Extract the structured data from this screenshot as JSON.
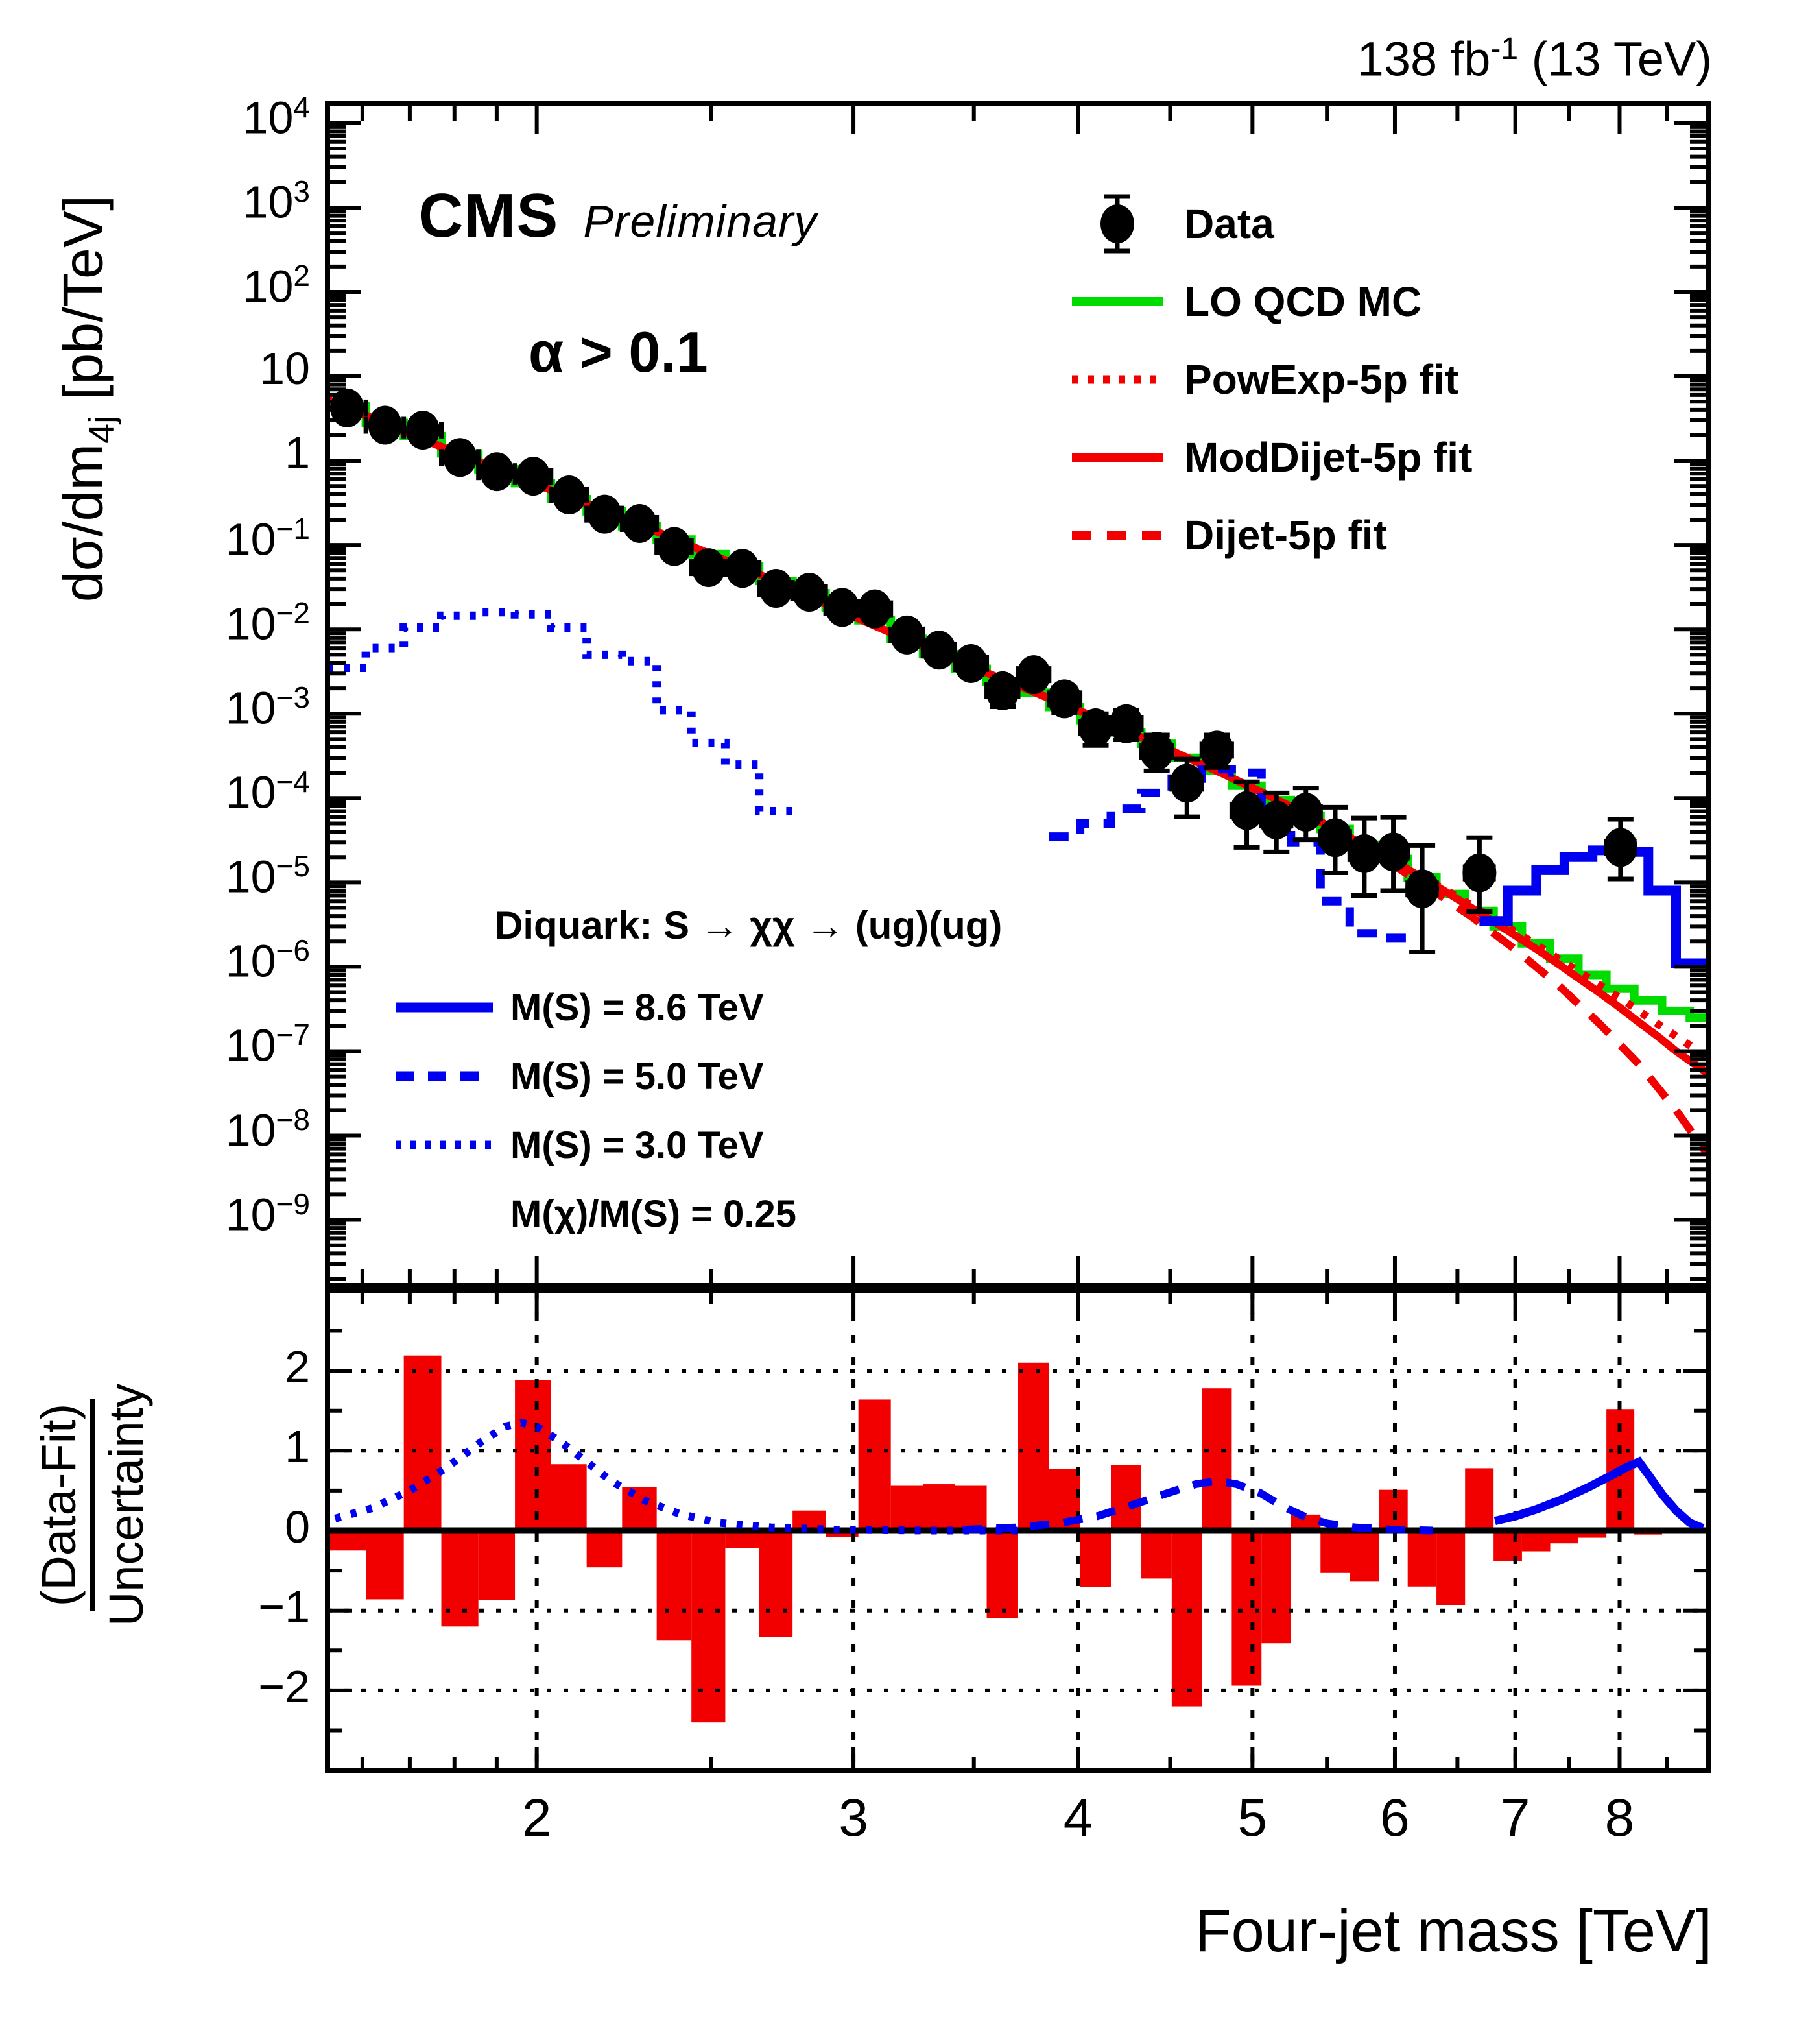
{
  "header": {
    "lumi_pre": "138 fb",
    "lumi_sup": "-1",
    "lumi_post": " (13 TeV)"
  },
  "branding": {
    "experiment": "CMS",
    "label": "Preliminary"
  },
  "selection": {
    "alpha_cut": "α > 0.1"
  },
  "axis_titles": {
    "y_pre": "dσ/dm",
    "y_sub": "4j",
    "y_post": " [pb/TeV]",
    "x": "Four-jet mass [TeV]",
    "pull_numerator": "(Data-Fit)",
    "pull_denominator": "Uncertainty"
  },
  "legend": {
    "items": [
      {
        "label": "Data",
        "style": "data-marker"
      },
      {
        "label": "LO QCD MC",
        "style": "green-solid"
      },
      {
        "label": "PowExp-5p fit",
        "style": "red-dotted"
      },
      {
        "label": "ModDijet-5p fit",
        "style": "red-solid"
      },
      {
        "label": "Dijet-5p fit",
        "style": "red-dashed"
      }
    ]
  },
  "signal_legend": {
    "title": "Diquark: S → χχ → (ug)(ug)",
    "items": [
      {
        "label": "M(S) = 8.6 TeV",
        "style": "blue-solid"
      },
      {
        "label": "M(S) = 5.0 TeV",
        "style": "blue-dashed"
      },
      {
        "label": "M(S) = 3.0 TeV",
        "style": "blue-dotted"
      }
    ],
    "note": "M(χ)/M(S) = 0.25"
  },
  "colors": {
    "data": "#000000",
    "mc_green": "#00dc00",
    "fit_red": "#f20000",
    "signal_blue": "#0000f0",
    "frame": "#000000"
  },
  "chart_data": {
    "type": "line",
    "title": "CMS four-jet mass spectrum with fits and diquark signal shapes",
    "xlabel": "Four-jet mass [TeV]",
    "ylabel": "dσ/dm4j [pb/TeV]",
    "main": {
      "xlim": [
        1.53,
        8.96
      ],
      "ylim_log10": [
        -9.78,
        4.23
      ],
      "x_scale": "log",
      "y_scale": "log",
      "grid": false,
      "xticks": [
        2,
        3,
        4,
        5,
        6,
        7,
        8
      ],
      "xtick_minor": [
        1.6,
        1.7,
        1.8,
        1.9,
        2.5,
        3.5,
        4.5,
        5.5,
        6.5,
        7.5,
        8.5
      ],
      "ytick_exponents": [
        4,
        3,
        2,
        1,
        0,
        -1,
        -2,
        -3,
        -4,
        -5,
        -6,
        -7,
        -8,
        -9
      ],
      "bin_edges": [
        1.53,
        1.607,
        1.687,
        1.77,
        1.856,
        1.945,
        2.037,
        2.132,
        2.231,
        2.332,
        2.438,
        2.546,
        2.659,
        2.775,
        2.895,
        3.019,
        3.147,
        3.279,
        3.416,
        3.558,
        3.704,
        3.854,
        4.01,
        4.171,
        4.337,
        4.509,
        4.686,
        4.869,
        5.058,
        5.253,
        5.455,
        5.663,
        5.877,
        6.099,
        6.328,
        6.564,
        6.808,
        7.06,
        7.32,
        7.589,
        7.866,
        8.152,
        8.447,
        8.752,
        8.96
      ],
      "data_points": [
        [
          1.569,
          4.21,
          0.3,
          0.3
        ],
        [
          1.647,
          2.63,
          0.2,
          0.2
        ],
        [
          1.7285,
          2.3,
          0.17,
          0.17
        ],
        [
          1.813,
          1.09,
          0.095,
          0.095
        ],
        [
          1.9005,
          0.739,
          0.068,
          0.068
        ],
        [
          1.991,
          0.654,
          0.058,
          0.058
        ],
        [
          2.0845,
          0.392,
          0.036,
          0.036
        ],
        [
          2.1815,
          0.232,
          0.024,
          0.024
        ],
        [
          2.2815,
          0.18,
          0.019,
          0.019
        ],
        [
          2.385,
          0.0959,
          0.012,
          0.012
        ],
        [
          2.492,
          0.0539,
          0.0082,
          0.0082
        ],
        [
          2.6025,
          0.0528,
          0.0075,
          0.0075
        ],
        [
          2.717,
          0.0306,
          0.0052,
          0.0052
        ],
        [
          2.835,
          0.0275,
          0.0046,
          0.0046
        ],
        [
          2.957,
          0.0182,
          0.0035,
          0.0035
        ],
        [
          3.083,
          0.0175,
          0.0032,
          0.0032
        ],
        [
          3.213,
          0.00858,
          0.0019,
          0.0019
        ],
        [
          3.3475,
          0.00567,
          0.0014,
          0.0014
        ],
        [
          3.487,
          0.00393,
          0.00105,
          0.00105
        ],
        [
          3.631,
          0.00187,
          0.00066,
          0.00072
        ],
        [
          3.779,
          0.0029,
          0.00075,
          0.00082
        ],
        [
          3.93,
          0.0015,
          0.00048,
          0.00055
        ],
        [
          4.0905,
          0.00068,
          0.00026,
          0.00032
        ],
        [
          4.254,
          0.00076,
          0.00027,
          0.00033
        ],
        [
          4.423,
          0.00036,
          0.00015,
          0.0002
        ],
        [
          4.5975,
          0.00015,
          9e-05,
          0.00014
        ],
        [
          4.7775,
          0.00037,
          0.00014,
          0.00019
        ],
        [
          4.9635,
          7.1e-05,
          4.5e-05,
          8.5e-05
        ],
        [
          5.1555,
          5.5e-05,
          3.2e-05,
          6e-05
        ],
        [
          5.354,
          6.8e-05,
          3.6e-05,
          6.4e-05
        ],
        [
          5.559,
          3.4e-05,
          2.1e-05,
          4.4e-05
        ],
        [
          5.77,
          2.2e-05,
          1.5e-05,
          3.6e-05
        ],
        [
          5.988,
          2.3e-05,
          1.5e-05,
          3.6e-05
        ],
        [
          6.2135,
          8.4e-06,
          6.9e-06,
          1.9e-05
        ],
        [
          6.686,
          1.3e-05,
          8.5e-06,
          2.1e-05
        ],
        [
          8.009,
          2.6e-05,
          1.5e-05,
          3e-05
        ]
      ],
      "mc_histogram_values": [
        4.4,
        2.8,
        1.95,
        1.22,
        0.79,
        0.54,
        0.35,
        0.25,
        0.167,
        0.116,
        0.078,
        0.0555,
        0.0375,
        0.0268,
        0.0182,
        0.0128,
        0.0077,
        0.0051,
        0.0034,
        0.00237,
        0.00178,
        0.0012,
        0.00084,
        0.0006,
        0.00044,
        0.0003,
        0.00021,
        0.00014,
        9.5e-05,
        6.2e-05,
        4.3e-05,
        2.8e-05,
        1.9e-05,
        1.15e-05,
        7.3e-06,
        4.6e-06,
        3e-06,
        1.9e-06,
        1.25e-06,
        8e-07,
        5.5e-07,
        4e-07,
        3e-07,
        2.5e-07
      ],
      "fit_moddijet": [
        [
          1.53,
          5.3
        ],
        [
          1.6,
          3.6
        ],
        [
          1.7,
          2.05
        ],
        [
          1.8,
          1.27
        ],
        [
          1.9,
          0.8
        ],
        [
          2.0,
          0.52
        ],
        [
          2.1,
          0.35
        ],
        [
          2.2,
          0.24
        ],
        [
          2.3,
          0.163
        ],
        [
          2.4,
          0.112
        ],
        [
          2.5,
          0.0775
        ],
        [
          2.6,
          0.055
        ],
        [
          2.7,
          0.0388
        ],
        [
          2.8,
          0.0278
        ],
        [
          2.9,
          0.0198
        ],
        [
          3.0,
          0.0142
        ],
        [
          3.2,
          0.0078
        ],
        [
          3.4,
          0.00455
        ],
        [
          3.6,
          0.00275
        ],
        [
          3.8,
          0.00172
        ],
        [
          4.0,
          0.0011
        ],
        [
          4.2,
          0.00071
        ],
        [
          4.4,
          0.00046
        ],
        [
          4.6,
          0.0003
        ],
        [
          4.8,
          0.0002
        ],
        [
          5.0,
          0.000133
        ],
        [
          5.2,
          8.8e-05
        ],
        [
          5.4,
          5.9e-05
        ],
        [
          5.6,
          3.9e-05
        ],
        [
          5.8,
          2.6e-05
        ],
        [
          6.0,
          1.75e-05
        ],
        [
          6.2,
          1.17e-05
        ],
        [
          6.4,
          7.8e-06
        ],
        [
          6.6,
          5.2e-06
        ],
        [
          6.8,
          3.5e-06
        ],
        [
          7.0,
          2.35e-06
        ],
        [
          7.2,
          1.6e-06
        ],
        [
          7.4,
          1.07e-06
        ],
        [
          7.6,
          7.2e-07
        ],
        [
          7.8,
          4.9e-07
        ],
        [
          8.0,
          3.3e-07
        ],
        [
          8.2,
          2.2e-07
        ],
        [
          8.4,
          1.5e-07
        ],
        [
          8.6,
          1e-07
        ],
        [
          8.95,
          5.5e-08
        ]
      ],
      "fit_powexp": [
        [
          1.53,
          5.3
        ],
        [
          1.7,
          2.05
        ],
        [
          1.9,
          0.8
        ],
        [
          2.1,
          0.35
        ],
        [
          2.3,
          0.163
        ],
        [
          2.5,
          0.0775
        ],
        [
          2.7,
          0.0388
        ],
        [
          2.9,
          0.0198
        ],
        [
          3.2,
          0.0078
        ],
        [
          3.6,
          0.00275
        ],
        [
          4.0,
          0.0011
        ],
        [
          4.4,
          0.00046
        ],
        [
          4.8,
          0.0002
        ],
        [
          5.2,
          8.8e-05
        ],
        [
          5.6,
          3.9e-05
        ],
        [
          6.0,
          1.75e-05
        ],
        [
          6.4,
          8.2e-06
        ],
        [
          6.8,
          3.8e-06
        ],
        [
          7.2,
          1.8e-06
        ],
        [
          7.6,
          8.6e-07
        ],
        [
          8.0,
          4.3e-07
        ],
        [
          8.4,
          2.1e-07
        ],
        [
          8.95,
          8.5e-08
        ]
      ],
      "fit_dijet": [
        [
          1.53,
          5.3
        ],
        [
          1.7,
          2.05
        ],
        [
          1.9,
          0.8
        ],
        [
          2.1,
          0.35
        ],
        [
          2.3,
          0.163
        ],
        [
          2.5,
          0.0775
        ],
        [
          2.7,
          0.0388
        ],
        [
          2.9,
          0.0198
        ],
        [
          3.2,
          0.0078
        ],
        [
          3.6,
          0.00275
        ],
        [
          4.0,
          0.0011
        ],
        [
          4.4,
          0.00046
        ],
        [
          4.8,
          0.0002
        ],
        [
          5.2,
          8.8e-05
        ],
        [
          5.4,
          5.9e-05
        ],
        [
          5.8,
          2.45e-05
        ],
        [
          6.2,
          1e-05
        ],
        [
          6.6,
          4.1e-06
        ],
        [
          7.0,
          1.6e-06
        ],
        [
          7.4,
          6e-07
        ],
        [
          7.8,
          2.1e-07
        ],
        [
          8.2,
          7e-08
        ],
        [
          8.6,
          2e-08
        ],
        [
          8.95,
          6e-09
        ]
      ],
      "signal_3TeV": {
        "edges": [
          1.53,
          1.607,
          1.687,
          1.77,
          1.856,
          1.945,
          2.037,
          2.132,
          2.231,
          2.332,
          2.438,
          2.546,
          2.659,
          2.775
        ],
        "values": [
          0.0035,
          0.006,
          0.0105,
          0.0145,
          0.016,
          0.015,
          0.0105,
          0.005,
          0.0042,
          0.0011,
          0.00045,
          0.00025,
          7e-05
        ]
      },
      "signal_5TeV": {
        "edges": [
          3.854,
          4.01,
          4.171,
          4.337,
          4.509,
          4.686,
          4.869,
          5.058,
          5.253,
          5.455,
          5.663,
          5.877,
          6.099
        ],
        "values": [
          3.5e-05,
          5e-05,
          7.5e-05,
          0.000115,
          0.00017,
          0.00022,
          0.0002,
          5e-05,
          3e-05,
          6e-06,
          2.5e-06,
          2.2e-06
        ]
      },
      "signal_86TeV": {
        "edges": [
          6.686,
          6.934,
          7.19,
          7.4545,
          7.7275,
          8.009,
          8.2995,
          8.5995,
          8.96
        ],
        "values": [
          3.5e-06,
          8e-06,
          1.4e-05,
          2e-05,
          2.4e-05,
          2.3e-05,
          8e-06,
          1.1e-06
        ]
      }
    },
    "pull": {
      "ylim": [
        -3.0,
        3.0
      ],
      "yticks": [
        2,
        1,
        0,
        -1,
        -2
      ],
      "ytick_minor_step": 0.5,
      "grid_y": [
        2,
        1,
        -1,
        -2
      ],
      "grid_x": [
        2,
        3,
        4,
        5,
        6,
        7,
        8
      ],
      "values": [
        -0.25,
        -0.86,
        2.19,
        -1.2,
        -0.87,
        1.88,
        0.83,
        -0.46,
        0.54,
        -1.37,
        -2.4,
        -0.22,
        -1.33,
        0.25,
        -0.08,
        1.64,
        0.56,
        0.58,
        0.56,
        -1.1,
        2.1,
        0.77,
        -0.71,
        0.82,
        -0.6,
        -2.2,
        1.78,
        -1.94,
        -1.41,
        0.2,
        -0.53,
        -0.64,
        0.51,
        -0.7,
        -0.93,
        0.78,
        -0.38,
        -0.26,
        -0.16,
        -0.09,
        1.52,
        -0.05,
        -0.03,
        0.0
      ],
      "signal_curve_3TeV": [
        [
          1.545,
          0.15
        ],
        [
          1.62,
          0.28
        ],
        [
          1.7,
          0.5
        ],
        [
          1.78,
          0.78
        ],
        [
          1.86,
          1.1
        ],
        [
          1.92,
          1.3
        ],
        [
          1.96,
          1.35
        ],
        [
          2.0,
          1.3
        ],
        [
          2.06,
          1.12
        ],
        [
          2.12,
          0.9
        ],
        [
          2.2,
          0.62
        ],
        [
          2.3,
          0.37
        ],
        [
          2.4,
          0.21
        ],
        [
          2.52,
          0.1
        ],
        [
          2.7,
          0.04
        ],
        [
          2.95,
          0.01
        ],
        [
          3.3,
          0.0
        ],
        [
          3.75,
          0.0
        ]
      ],
      "signal_curve_5TeV": [
        [
          3.45,
          0.01
        ],
        [
          3.7,
          0.04
        ],
        [
          3.9,
          0.09
        ],
        [
          4.1,
          0.18
        ],
        [
          4.3,
          0.33
        ],
        [
          4.5,
          0.48
        ],
        [
          4.65,
          0.58
        ],
        [
          4.78,
          0.62
        ],
        [
          4.9,
          0.58
        ],
        [
          5.05,
          0.47
        ],
        [
          5.2,
          0.3
        ],
        [
          5.35,
          0.17
        ],
        [
          5.5,
          0.09
        ],
        [
          5.7,
          0.04
        ],
        [
          5.95,
          0.015
        ],
        [
          6.3,
          0.0
        ]
      ],
      "signal_curve_86TeV": [
        [
          6.82,
          0.12
        ],
        [
          7.0,
          0.18
        ],
        [
          7.2,
          0.27
        ],
        [
          7.45,
          0.4
        ],
        [
          7.7,
          0.55
        ],
        [
          7.9,
          0.68
        ],
        [
          8.05,
          0.78
        ],
        [
          8.2,
          0.86
        ],
        [
          8.3,
          0.7
        ],
        [
          8.45,
          0.45
        ],
        [
          8.6,
          0.25
        ],
        [
          8.75,
          0.1
        ],
        [
          8.9,
          0.03
        ]
      ]
    }
  }
}
